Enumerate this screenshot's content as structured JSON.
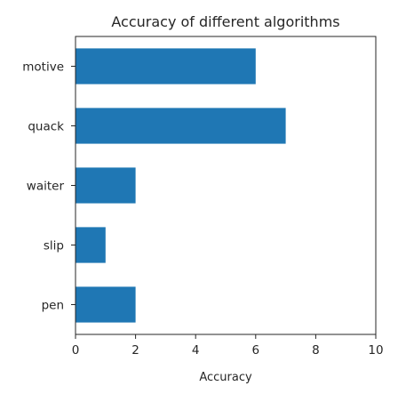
{
  "chart_data": {
    "type": "bar",
    "orientation": "horizontal",
    "title": "Accuracy of different algorithms",
    "xlabel": "Accuracy",
    "ylabel": "",
    "categories": [
      "motive",
      "quack",
      "waiter",
      "slip",
      "pen"
    ],
    "values": [
      6,
      7,
      2,
      1,
      2
    ],
    "xlim": [
      0,
      10
    ],
    "xticks": [
      0,
      2,
      4,
      6,
      8,
      10
    ],
    "grid": false,
    "legend": "none",
    "bar_color": "#1f77b4"
  }
}
